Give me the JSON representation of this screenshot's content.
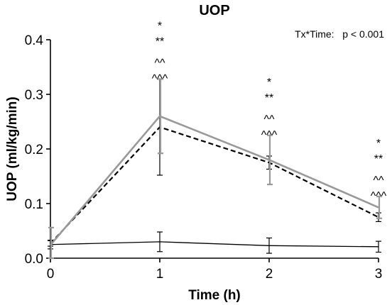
{
  "chart_data": {
    "type": "line",
    "title": "UOP",
    "xlabel": "Time (h)",
    "ylabel": "UOP (ml/kg/min)",
    "x": [
      0,
      1,
      2,
      3
    ],
    "xlim": [
      0,
      3
    ],
    "ylim": [
      0,
      0.4
    ],
    "xticks": [
      "0",
      "1",
      "2",
      "3"
    ],
    "yticks": [
      "0.0",
      "0.1",
      "0.2",
      "0.3",
      "0.4"
    ],
    "grid": false,
    "annotation": "Tx*Time:   p < 0.001",
    "significance": [
      {
        "x": 1,
        "markers": [
          "*",
          "**",
          "^^",
          "^^^"
        ]
      },
      {
        "x": 2,
        "markers": [
          "*",
          "**",
          "^^",
          "^^^"
        ]
      },
      {
        "x": 3,
        "markers": [
          "*",
          "**",
          "^^",
          "^^^"
        ]
      }
    ],
    "series": [
      {
        "style": "solid-black",
        "color": "#000000",
        "values": [
          0.025,
          0.03,
          0.023,
          0.021
        ],
        "error": [
          0.008,
          0.018,
          0.014,
          0.01
        ]
      },
      {
        "style": "dashed-black",
        "color": "#000000",
        "values": [
          0.027,
          0.24,
          0.175,
          0.075
        ],
        "error": [
          0.005,
          0.088,
          0.012,
          0.008
        ]
      },
      {
        "style": "solid-gray",
        "color": "#999999",
        "values": [
          0.024,
          0.26,
          0.18,
          0.093
        ],
        "error": [
          0.032,
          0.068,
          0.045,
          0.02
        ]
      }
    ]
  }
}
